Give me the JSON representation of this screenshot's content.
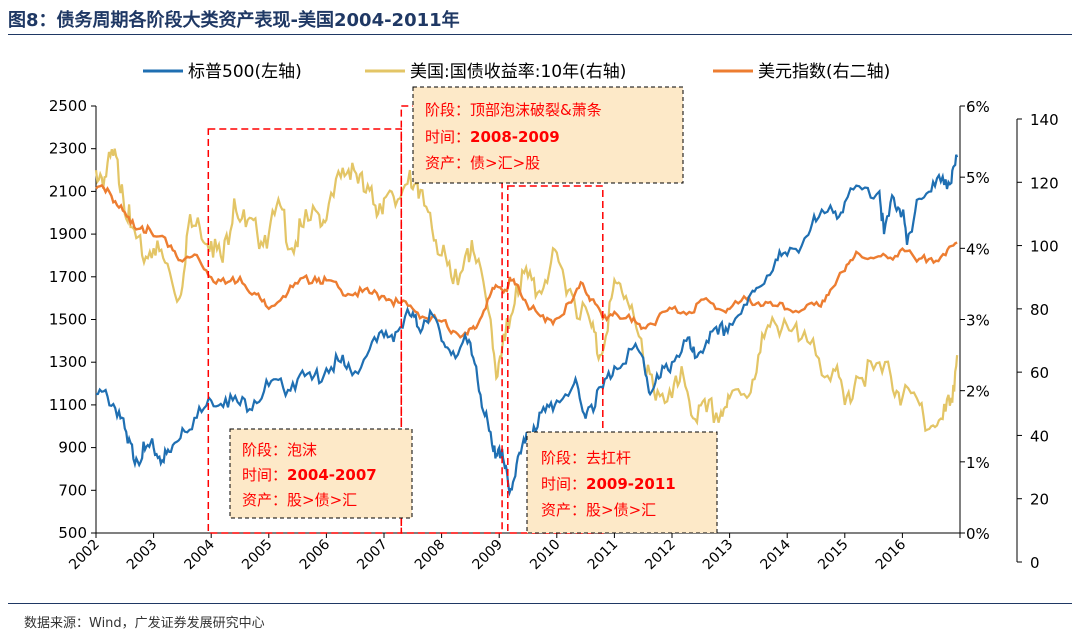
{
  "title": "图8：债务周期各阶段大类资产表现-美国2004-2011年",
  "source": "数据来源：Wind，广发证券发展研究中心",
  "chart_data": {
    "type": "line",
    "title": "图8：债务周期各阶段大类资产表现-美国2004-2011年",
    "x_ticks": [
      "2002",
      "2003",
      "2004",
      "2005",
      "2006",
      "2007",
      "2008",
      "2009",
      "2010",
      "2011",
      "2012",
      "2013",
      "2014",
      "2015",
      "2016"
    ],
    "x_range": [
      2002,
      2017
    ],
    "y_left": {
      "range": [
        500,
        2500
      ],
      "ticks": [
        "500",
        "700",
        "900",
        "1100",
        "1300",
        "1500",
        "1700",
        "1900",
        "2100",
        "2300",
        "2500"
      ]
    },
    "y_right1": {
      "range": [
        0,
        6
      ],
      "ticks": [
        "0%",
        "1%",
        "2%",
        "3%",
        "4%",
        "5%",
        "6%"
      ]
    },
    "y_right2": {
      "range": [
        0,
        140
      ],
      "ticks": [
        "0",
        "20",
        "40",
        "60",
        "80",
        "100",
        "120",
        "140"
      ]
    },
    "series": [
      {
        "name": "标普500(左轴)",
        "axis": "left",
        "color": "#1f6fb2",
        "points": [
          [
            2002.0,
            1150
          ],
          [
            2002.2,
            1140
          ],
          [
            2002.4,
            1070
          ],
          [
            2002.55,
            920
          ],
          [
            2002.7,
            850
          ],
          [
            2002.85,
            890
          ],
          [
            2003.0,
            900
          ],
          [
            2003.15,
            840
          ],
          [
            2003.3,
            880
          ],
          [
            2003.5,
            990
          ],
          [
            2003.75,
            1040
          ],
          [
            2004.0,
            1120
          ],
          [
            2004.25,
            1130
          ],
          [
            2004.5,
            1100
          ],
          [
            2004.75,
            1120
          ],
          [
            2005.0,
            1190
          ],
          [
            2005.25,
            1180
          ],
          [
            2005.5,
            1220
          ],
          [
            2005.75,
            1220
          ],
          [
            2006.0,
            1270
          ],
          [
            2006.25,
            1300
          ],
          [
            2006.45,
            1240
          ],
          [
            2006.75,
            1360
          ],
          [
            2007.0,
            1420
          ],
          [
            2007.2,
            1440
          ],
          [
            2007.45,
            1520
          ],
          [
            2007.6,
            1460
          ],
          [
            2007.8,
            1540
          ],
          [
            2008.0,
            1400
          ],
          [
            2008.2,
            1350
          ],
          [
            2008.45,
            1390
          ],
          [
            2008.6,
            1280
          ],
          [
            2008.75,
            1050
          ],
          [
            2008.9,
            880
          ],
          [
            2009.0,
            900
          ],
          [
            2009.1,
            800
          ],
          [
            2009.18,
            690
          ],
          [
            2009.3,
            820
          ],
          [
            2009.45,
            920
          ],
          [
            2009.6,
            1000
          ],
          [
            2009.8,
            1070
          ],
          [
            2010.0,
            1120
          ],
          [
            2010.3,
            1200
          ],
          [
            2010.45,
            1070
          ],
          [
            2010.6,
            1100
          ],
          [
            2010.8,
            1180
          ],
          [
            2011.0,
            1280
          ],
          [
            2011.3,
            1360
          ],
          [
            2011.5,
            1320
          ],
          [
            2011.62,
            1150
          ],
          [
            2011.8,
            1230
          ],
          [
            2012.0,
            1300
          ],
          [
            2012.25,
            1400
          ],
          [
            2012.4,
            1320
          ],
          [
            2012.6,
            1400
          ],
          [
            2012.8,
            1430
          ],
          [
            2013.0,
            1480
          ],
          [
            2013.3,
            1570
          ],
          [
            2013.5,
            1650
          ],
          [
            2013.8,
            1780
          ],
          [
            2014.0,
            1800
          ],
          [
            2014.3,
            1880
          ],
          [
            2014.5,
            1960
          ],
          [
            2014.8,
            2000
          ],
          [
            2015.0,
            2050
          ],
          [
            2015.3,
            2110
          ],
          [
            2015.6,
            2100
          ],
          [
            2015.68,
            1900
          ],
          [
            2015.85,
            2070
          ],
          [
            2016.0,
            2000
          ],
          [
            2016.08,
            1850
          ],
          [
            2016.25,
            2060
          ],
          [
            2016.5,
            2100
          ],
          [
            2016.7,
            2170
          ],
          [
            2016.85,
            2140
          ],
          [
            2016.95,
            2260
          ]
        ]
      },
      {
        "name": "美国:国债收益率:10年(右轴)",
        "axis": "right1",
        "color": "#e3c566",
        "points": [
          [
            2002.0,
            5.1
          ],
          [
            2002.15,
            5.0
          ],
          [
            2002.3,
            5.3
          ],
          [
            2002.45,
            4.9
          ],
          [
            2002.6,
            4.3
          ],
          [
            2002.8,
            3.9
          ],
          [
            2003.0,
            4.0
          ],
          [
            2003.2,
            3.8
          ],
          [
            2003.45,
            3.3
          ],
          [
            2003.6,
            4.3
          ],
          [
            2003.8,
            4.3
          ],
          [
            2004.0,
            4.1
          ],
          [
            2004.2,
            3.8
          ],
          [
            2004.4,
            4.7
          ],
          [
            2004.6,
            4.3
          ],
          [
            2004.8,
            4.2
          ],
          [
            2005.0,
            4.2
          ],
          [
            2005.2,
            4.6
          ],
          [
            2005.4,
            4.0
          ],
          [
            2005.6,
            4.3
          ],
          [
            2005.85,
            4.5
          ],
          [
            2006.0,
            4.4
          ],
          [
            2006.25,
            5.0
          ],
          [
            2006.45,
            5.2
          ],
          [
            2006.65,
            4.8
          ],
          [
            2006.85,
            4.6
          ],
          [
            2007.0,
            4.7
          ],
          [
            2007.2,
            4.6
          ],
          [
            2007.45,
            5.1
          ],
          [
            2007.6,
            4.7
          ],
          [
            2007.8,
            4.5
          ],
          [
            2008.0,
            3.9
          ],
          [
            2008.2,
            3.5
          ],
          [
            2008.45,
            4.0
          ],
          [
            2008.6,
            3.8
          ],
          [
            2008.85,
            3.0
          ],
          [
            2008.97,
            2.2
          ],
          [
            2009.1,
            2.7
          ],
          [
            2009.3,
            3.5
          ],
          [
            2009.5,
            3.6
          ],
          [
            2009.7,
            3.4
          ],
          [
            2009.9,
            3.8
          ],
          [
            2010.1,
            3.7
          ],
          [
            2010.3,
            3.3
          ],
          [
            2010.6,
            2.9
          ],
          [
            2010.75,
            2.5
          ],
          [
            2010.95,
            3.3
          ],
          [
            2011.1,
            3.5
          ],
          [
            2011.3,
            3.2
          ],
          [
            2011.55,
            2.2
          ],
          [
            2011.75,
            2.0
          ],
          [
            2012.0,
            1.9
          ],
          [
            2012.2,
            2.2
          ],
          [
            2012.4,
            1.6
          ],
          [
            2012.6,
            1.7
          ],
          [
            2012.85,
            1.7
          ],
          [
            2013.0,
            1.9
          ],
          [
            2013.3,
            1.9
          ],
          [
            2013.5,
            2.5
          ],
          [
            2013.7,
            2.9
          ],
          [
            2013.95,
            3.0
          ],
          [
            2014.2,
            2.7
          ],
          [
            2014.5,
            2.5
          ],
          [
            2014.8,
            2.3
          ],
          [
            2015.0,
            1.8
          ],
          [
            2015.2,
            2.2
          ],
          [
            2015.5,
            2.3
          ],
          [
            2015.8,
            2.2
          ],
          [
            2016.0,
            1.9
          ],
          [
            2016.3,
            1.8
          ],
          [
            2016.5,
            1.5
          ],
          [
            2016.7,
            1.6
          ],
          [
            2016.85,
            1.9
          ],
          [
            2016.95,
            2.5
          ]
        ]
      },
      {
        "name": "美元指数(右二轴)",
        "axis": "right2",
        "color": "#ed7d31",
        "points": [
          [
            2002.0,
            118
          ],
          [
            2002.2,
            118
          ],
          [
            2002.4,
            112
          ],
          [
            2002.6,
            107
          ],
          [
            2002.8,
            106
          ],
          [
            2003.0,
            103
          ],
          [
            2003.3,
            100
          ],
          [
            2003.5,
            95
          ],
          [
            2003.75,
            97
          ],
          [
            2004.0,
            90
          ],
          [
            2004.25,
            88
          ],
          [
            2004.5,
            90
          ],
          [
            2004.75,
            85
          ],
          [
            2004.95,
            81
          ],
          [
            2005.25,
            84
          ],
          [
            2005.5,
            88
          ],
          [
            2005.8,
            90
          ],
          [
            2006.0,
            89
          ],
          [
            2006.25,
            86
          ],
          [
            2006.5,
            85
          ],
          [
            2006.75,
            85
          ],
          [
            2007.0,
            84
          ],
          [
            2007.25,
            82
          ],
          [
            2007.5,
            80
          ],
          [
            2007.75,
            77
          ],
          [
            2008.0,
            76
          ],
          [
            2008.2,
            73
          ],
          [
            2008.45,
            72
          ],
          [
            2008.6,
            74
          ],
          [
            2008.8,
            83
          ],
          [
            2008.97,
            87
          ],
          [
            2009.1,
            86
          ],
          [
            2009.2,
            89
          ],
          [
            2009.35,
            86
          ],
          [
            2009.55,
            80
          ],
          [
            2009.8,
            76
          ],
          [
            2010.0,
            77
          ],
          [
            2010.25,
            82
          ],
          [
            2010.45,
            88
          ],
          [
            2010.6,
            83
          ],
          [
            2010.8,
            77
          ],
          [
            2011.0,
            79
          ],
          [
            2011.3,
            76
          ],
          [
            2011.5,
            74
          ],
          [
            2011.75,
            77
          ],
          [
            2012.0,
            80
          ],
          [
            2012.3,
            79
          ],
          [
            2012.55,
            83
          ],
          [
            2012.8,
            80
          ],
          [
            2013.0,
            80
          ],
          [
            2013.3,
            83
          ],
          [
            2013.5,
            82
          ],
          [
            2013.75,
            81
          ],
          [
            2014.0,
            80
          ],
          [
            2014.3,
            80
          ],
          [
            2014.55,
            81
          ],
          [
            2014.75,
            86
          ],
          [
            2015.0,
            92
          ],
          [
            2015.2,
            98
          ],
          [
            2015.5,
            96
          ],
          [
            2015.75,
            96
          ],
          [
            2016.0,
            99
          ],
          [
            2016.25,
            95
          ],
          [
            2016.5,
            96
          ],
          [
            2016.75,
            97
          ],
          [
            2016.95,
            101
          ]
        ]
      }
    ],
    "phases": [
      {
        "id": "bubble",
        "x_start": 2003.95,
        "x_end": 2007.3,
        "stage_label": "阶段：",
        "stage_value": "泡沫",
        "time_label": "时间：",
        "time_value": "2004-2007",
        "asset_label": "资产：",
        "asset_value": "股>债>汇"
      },
      {
        "id": "burst",
        "x_start": 2007.3,
        "x_end": 2009.05,
        "stage_label": "阶段：",
        "stage_value": "顶部泡沫破裂&萧条",
        "time_label": "时间：",
        "time_value": "2008-2009",
        "asset_label": "资产：",
        "asset_value": "债>汇>股"
      },
      {
        "id": "deleverage",
        "x_start": 2009.15,
        "x_end": 2010.8,
        "stage_label": "阶段：",
        "stage_value": "去扛杆",
        "time_label": "时间：",
        "time_value": "2009-2011",
        "asset_label": "资产：",
        "asset_value": "股>债>汇"
      }
    ]
  }
}
